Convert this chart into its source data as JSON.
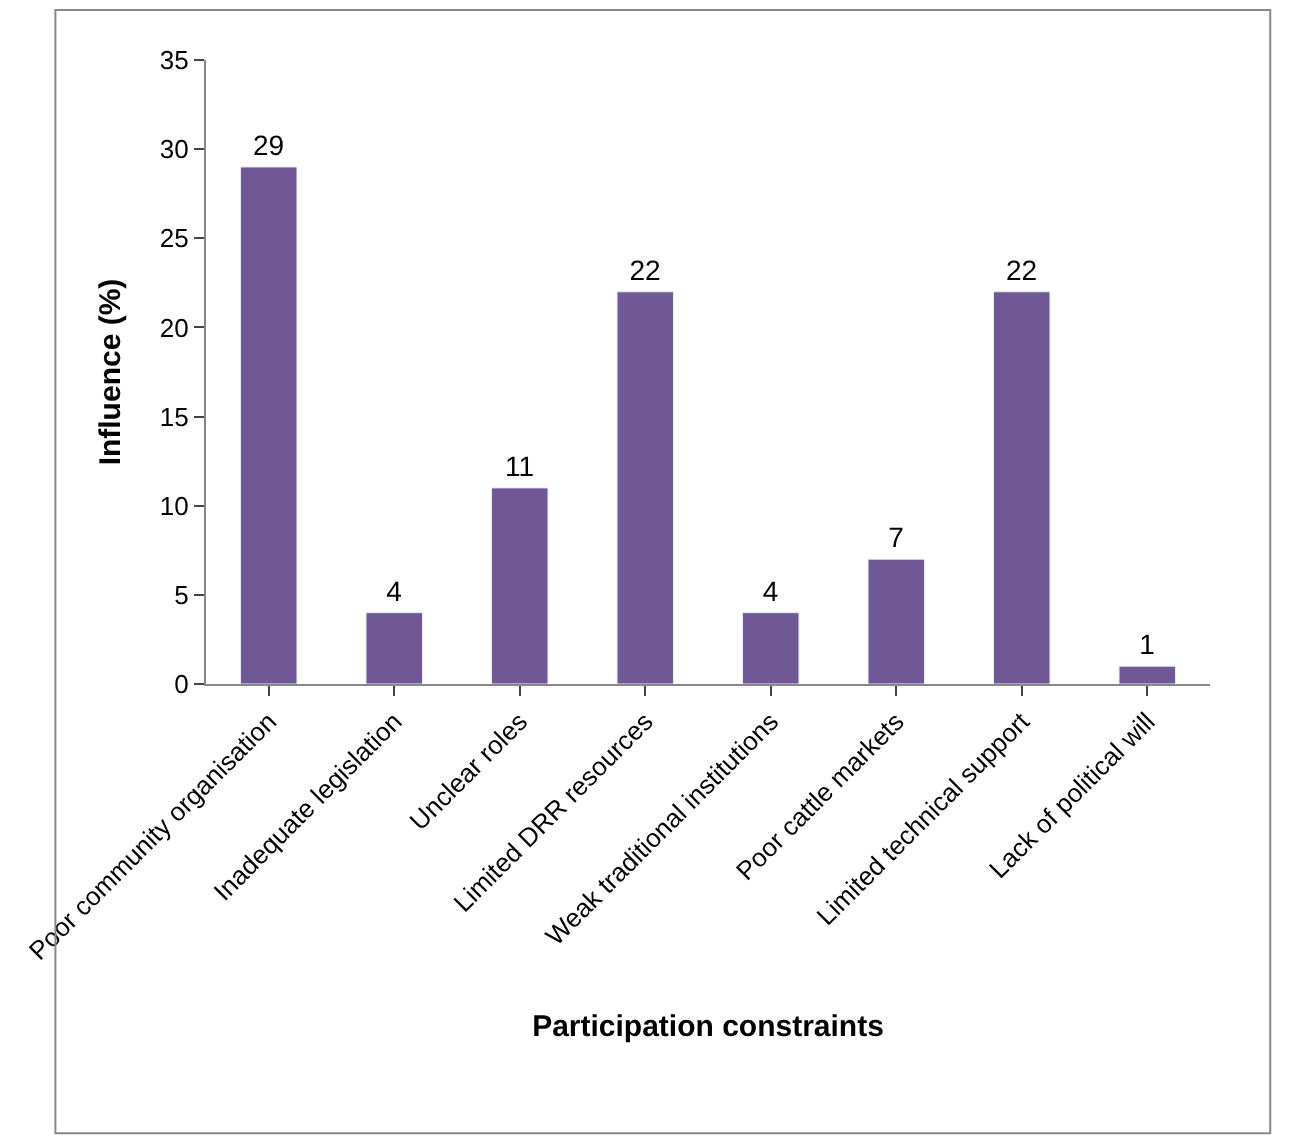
{
  "chart_data": {
    "type": "bar",
    "xlabel": "Participation constraints",
    "ylabel": "Influence (%)",
    "categories": [
      "Poor community organisation",
      "Inadequate legislation",
      "Unclear roles",
      "Limited DRR resources",
      "Weak traditional institutions",
      "Poor cattle markets",
      "Limited technical support",
      "Lack of political will"
    ],
    "values": [
      29,
      4,
      11,
      22,
      4,
      7,
      22,
      1
    ],
    "color": "#6f5895",
    "ylim": [
      0,
      35
    ],
    "yticks": [
      0,
      5,
      10,
      15,
      20,
      25,
      30,
      35
    ],
    "data_labels": true
  }
}
